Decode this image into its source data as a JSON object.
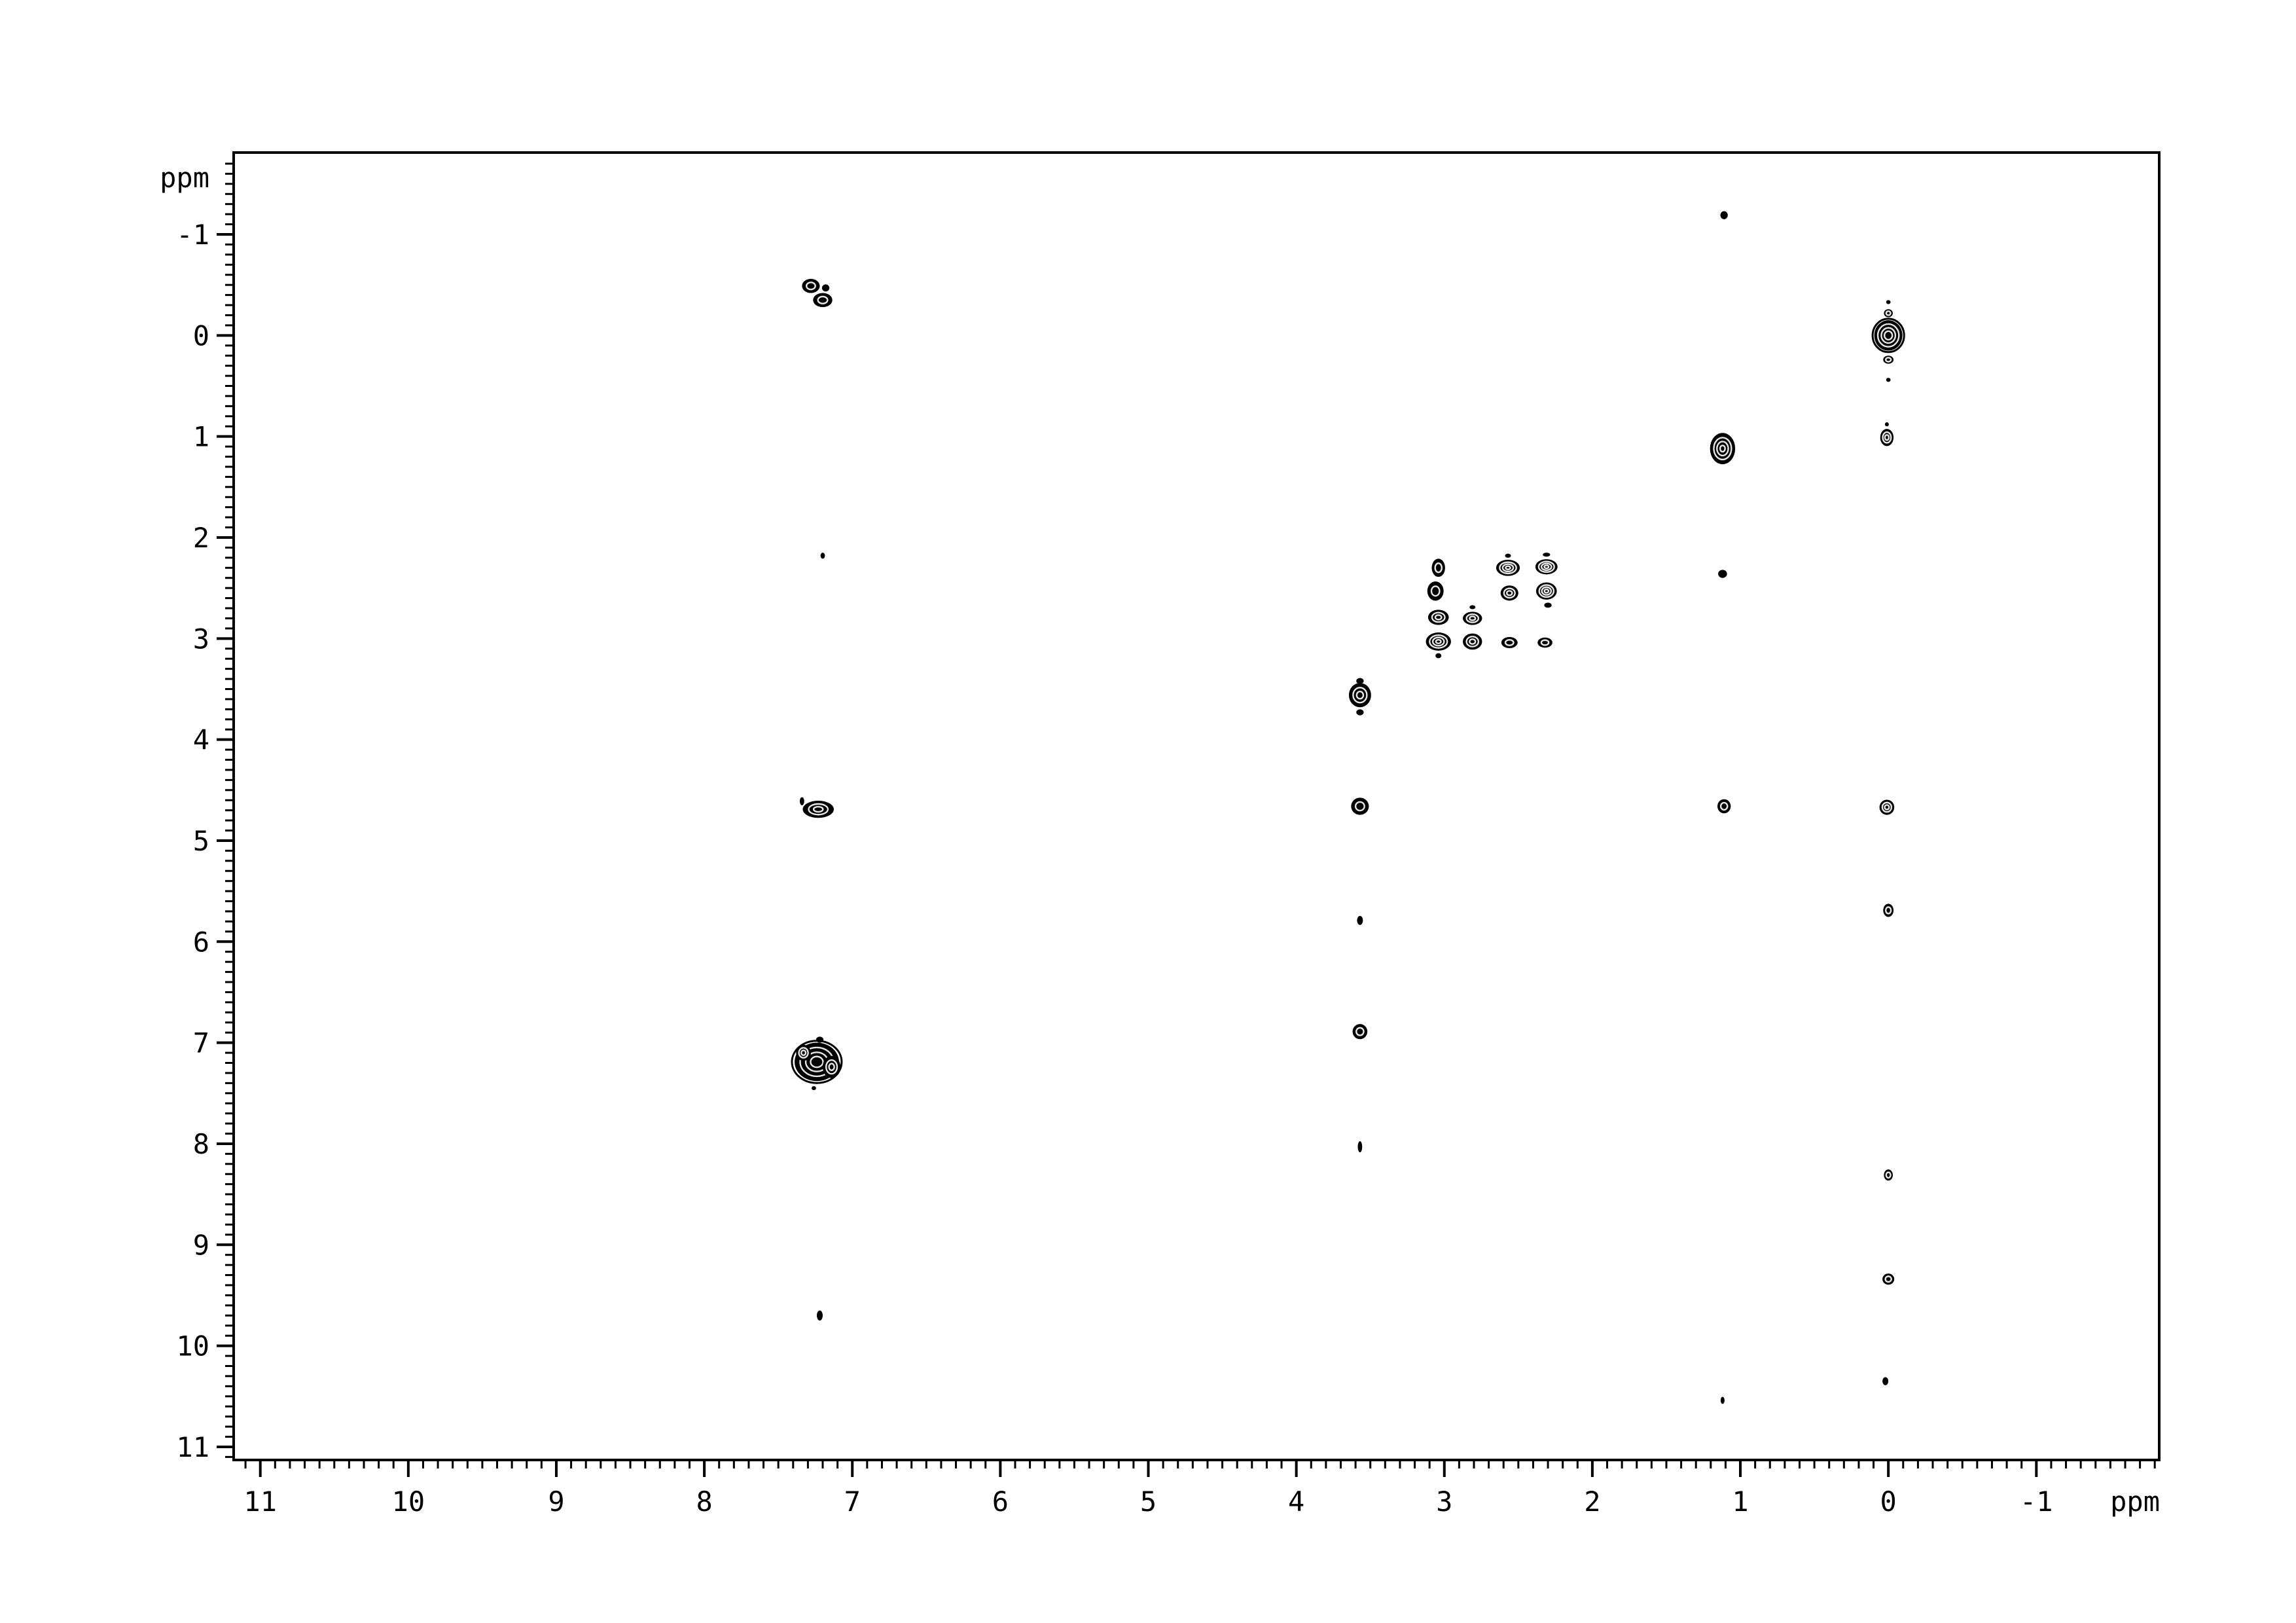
{
  "page": {
    "background": "#ffffff",
    "ink": "#000000"
  },
  "chart_data": {
    "type": "scatter",
    "description": "2D homonuclear (COSY-type) NMR contour spectrum, black contour peaks on white",
    "xlabel": "ppm",
    "ylabel": "ppm",
    "grid": false,
    "x_axis": {
      "unit": "ppm",
      "major_ticks": [
        11,
        10,
        9,
        8,
        7,
        6,
        5,
        4,
        3,
        2,
        1,
        0,
        -1
      ],
      "minor_step": 0.1,
      "range": [
        11.18,
        -1.83
      ],
      "inverted": true
    },
    "y_axis": {
      "unit": "ppm",
      "major_ticks": [
        -1,
        0,
        1,
        2,
        3,
        4,
        5,
        6,
        7,
        8,
        9,
        10,
        11
      ],
      "minor_step": 0.1,
      "range": [
        -1.81,
        11.13
      ],
      "inverted_down": true
    },
    "peaks": [
      {
        "x": 7.28,
        "y": -0.49,
        "w": 0.12,
        "h": 0.14,
        "i": 2
      },
      {
        "x": 7.18,
        "y": -0.47,
        "w": 0.05,
        "h": 0.07,
        "i": 1
      },
      {
        "x": 7.2,
        "y": -0.35,
        "w": 0.13,
        "h": 0.14,
        "i": 2
      },
      {
        "x": 7.2,
        "y": 2.18,
        "w": 0.03,
        "h": 0.06,
        "i": 1
      },
      {
        "x": 7.34,
        "y": 4.61,
        "w": 0.03,
        "h": 0.08,
        "i": 1
      },
      {
        "x": 7.23,
        "y": 4.69,
        "w": 0.21,
        "h": 0.17,
        "i": 3
      },
      {
        "x": 7.24,
        "y": 7.19,
        "w": 0.3,
        "h": 0.38,
        "i": 5
      },
      {
        "x": 7.14,
        "y": 7.24,
        "w": 0.12,
        "h": 0.22,
        "i": 3
      },
      {
        "x": 7.33,
        "y": 7.1,
        "w": 0.1,
        "h": 0.16,
        "i": 3
      },
      {
        "x": 7.22,
        "y": 6.97,
        "w": 0.05,
        "h": 0.06,
        "i": 1
      },
      {
        "x": 7.26,
        "y": 7.45,
        "w": 0.03,
        "h": 0.04,
        "i": 1
      },
      {
        "x": 7.22,
        "y": 9.7,
        "w": 0.04,
        "h": 0.1,
        "i": 1
      },
      {
        "x": 3.57,
        "y": 3.42,
        "w": 0.05,
        "h": 0.06,
        "i": 1
      },
      {
        "x": 3.57,
        "y": 3.56,
        "w": 0.15,
        "h": 0.24,
        "i": 3
      },
      {
        "x": 3.57,
        "y": 3.73,
        "w": 0.05,
        "h": 0.06,
        "i": 1
      },
      {
        "x": 3.57,
        "y": 4.66,
        "w": 0.12,
        "h": 0.17,
        "i": 2
      },
      {
        "x": 3.57,
        "y": 5.79,
        "w": 0.04,
        "h": 0.09,
        "i": 1
      },
      {
        "x": 3.57,
        "y": 6.89,
        "w": 0.1,
        "h": 0.15,
        "i": 2
      },
      {
        "x": 3.57,
        "y": 8.03,
        "w": 0.03,
        "h": 0.11,
        "i": 1
      },
      {
        "x": 3.04,
        "y": 2.3,
        "w": 0.09,
        "h": 0.18,
        "i": 2
      },
      {
        "x": 3.06,
        "y": 2.53,
        "w": 0.11,
        "h": 0.19,
        "i": 2
      },
      {
        "x": 3.04,
        "y": 2.79,
        "w": 0.14,
        "h": 0.15,
        "i": 3
      },
      {
        "x": 3.04,
        "y": 3.03,
        "w": 0.17,
        "h": 0.18,
        "i": 4
      },
      {
        "x": 3.04,
        "y": 3.17,
        "w": 0.04,
        "h": 0.05,
        "i": 1
      },
      {
        "x": 2.81,
        "y": 2.69,
        "w": 0.04,
        "h": 0.04,
        "i": 1
      },
      {
        "x": 2.81,
        "y": 2.8,
        "w": 0.13,
        "h": 0.13,
        "i": 3
      },
      {
        "x": 2.81,
        "y": 3.03,
        "w": 0.13,
        "h": 0.16,
        "i": 3
      },
      {
        "x": 2.57,
        "y": 2.18,
        "w": 0.04,
        "h": 0.04,
        "i": 1
      },
      {
        "x": 2.57,
        "y": 2.3,
        "w": 0.16,
        "h": 0.16,
        "i": 4
      },
      {
        "x": 2.56,
        "y": 2.55,
        "w": 0.12,
        "h": 0.15,
        "i": 3
      },
      {
        "x": 2.56,
        "y": 3.04,
        "w": 0.11,
        "h": 0.11,
        "i": 2
      },
      {
        "x": 2.31,
        "y": 2.17,
        "w": 0.05,
        "h": 0.04,
        "i": 1
      },
      {
        "x": 2.31,
        "y": 2.29,
        "w": 0.15,
        "h": 0.15,
        "i": 4
      },
      {
        "x": 2.31,
        "y": 2.53,
        "w": 0.14,
        "h": 0.17,
        "i": 4
      },
      {
        "x": 2.3,
        "y": 2.67,
        "w": 0.05,
        "h": 0.05,
        "i": 1
      },
      {
        "x": 2.32,
        "y": 3.04,
        "w": 0.1,
        "h": 0.1,
        "i": 2
      },
      {
        "x": 1.11,
        "y": -1.19,
        "w": 0.05,
        "h": 0.08,
        "i": 1
      },
      {
        "x": 1.12,
        "y": 1.12,
        "w": 0.17,
        "h": 0.31,
        "i": 4
      },
      {
        "x": 1.12,
        "y": 2.36,
        "w": 0.06,
        "h": 0.08,
        "i": 1
      },
      {
        "x": 1.11,
        "y": 4.66,
        "w": 0.09,
        "h": 0.14,
        "i": 2
      },
      {
        "x": 1.12,
        "y": 10.54,
        "w": 0.02,
        "h": 0.07,
        "i": 1
      },
      {
        "x": 0.0,
        "y": -0.33,
        "w": 0.03,
        "h": 0.04,
        "i": 1
      },
      {
        "x": 0.0,
        "y": -0.22,
        "w": 0.06,
        "h": 0.08,
        "i": 2
      },
      {
        "x": 0.0,
        "y": 0.0,
        "w": 0.19,
        "h": 0.3,
        "i": 5
      },
      {
        "x": 0.0,
        "y": 0.24,
        "w": 0.07,
        "h": 0.08,
        "i": 2
      },
      {
        "x": 0.0,
        "y": 0.44,
        "w": 0.03,
        "h": 0.04,
        "i": 1
      },
      {
        "x": 0.01,
        "y": 0.88,
        "w": 0.02,
        "h": 0.04,
        "i": 1
      },
      {
        "x": 0.01,
        "y": 1.01,
        "w": 0.09,
        "h": 0.17,
        "i": 3
      },
      {
        "x": 0.01,
        "y": 4.67,
        "w": 0.1,
        "h": 0.15,
        "i": 3
      },
      {
        "x": 0.0,
        "y": 5.69,
        "w": 0.07,
        "h": 0.13,
        "i": 2
      },
      {
        "x": 0.0,
        "y": 8.31,
        "w": 0.06,
        "h": 0.11,
        "i": 2
      },
      {
        "x": 0.0,
        "y": 9.34,
        "w": 0.08,
        "h": 0.11,
        "i": 2
      },
      {
        "x": 0.02,
        "y": 10.35,
        "w": 0.04,
        "h": 0.08,
        "i": 1
      }
    ]
  }
}
